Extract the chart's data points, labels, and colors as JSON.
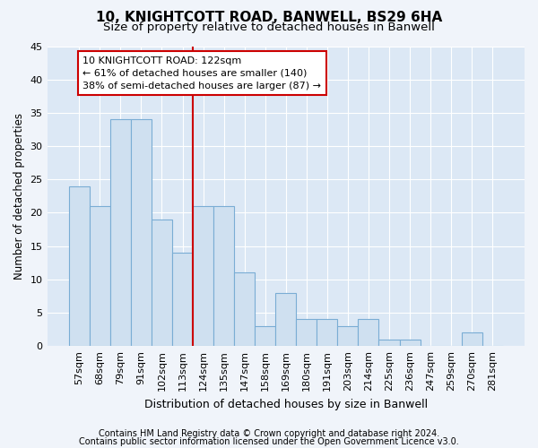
{
  "title1": "10, KNIGHTCOTT ROAD, BANWELL, BS29 6HA",
  "title2": "Size of property relative to detached houses in Banwell",
  "xlabel": "Distribution of detached houses by size in Banwell",
  "ylabel": "Number of detached properties",
  "categories": [
    "57sqm",
    "68sqm",
    "79sqm",
    "91sqm",
    "102sqm",
    "113sqm",
    "124sqm",
    "135sqm",
    "147sqm",
    "158sqm",
    "169sqm",
    "180sqm",
    "191sqm",
    "203sqm",
    "214sqm",
    "225sqm",
    "236sqm",
    "247sqm",
    "259sqm",
    "270sqm",
    "281sqm"
  ],
  "values": [
    24,
    21,
    34,
    34,
    19,
    14,
    21,
    21,
    11,
    3,
    8,
    4,
    4,
    3,
    4,
    1,
    1,
    0,
    0,
    2,
    0
  ],
  "bar_color": "#cfe0f0",
  "bar_edge_color": "#7aadd4",
  "vline_color": "#cc0000",
  "vline_x_index": 6,
  "ylim": [
    0,
    45
  ],
  "yticks": [
    0,
    5,
    10,
    15,
    20,
    25,
    30,
    35,
    40,
    45
  ],
  "annotation_line1": "10 KNIGHTCOTT ROAD: 122sqm",
  "annotation_line2": "← 61% of detached houses are smaller (140)",
  "annotation_line3": "38% of semi-detached houses are larger (87) →",
  "annotation_box_color": "#ffffff",
  "annotation_box_edge": "#cc0000",
  "footer1": "Contains HM Land Registry data © Crown copyright and database right 2024.",
  "footer2": "Contains public sector information licensed under the Open Government Licence v3.0.",
  "bg_color": "#f0f4fa",
  "plot_bg_color": "#dce8f5",
  "grid_color": "#ffffff",
  "title1_fontsize": 11,
  "title2_fontsize": 9.5,
  "xlabel_fontsize": 9,
  "ylabel_fontsize": 8.5,
  "tick_fontsize": 8,
  "annotation_fontsize": 8,
  "footer_fontsize": 7
}
